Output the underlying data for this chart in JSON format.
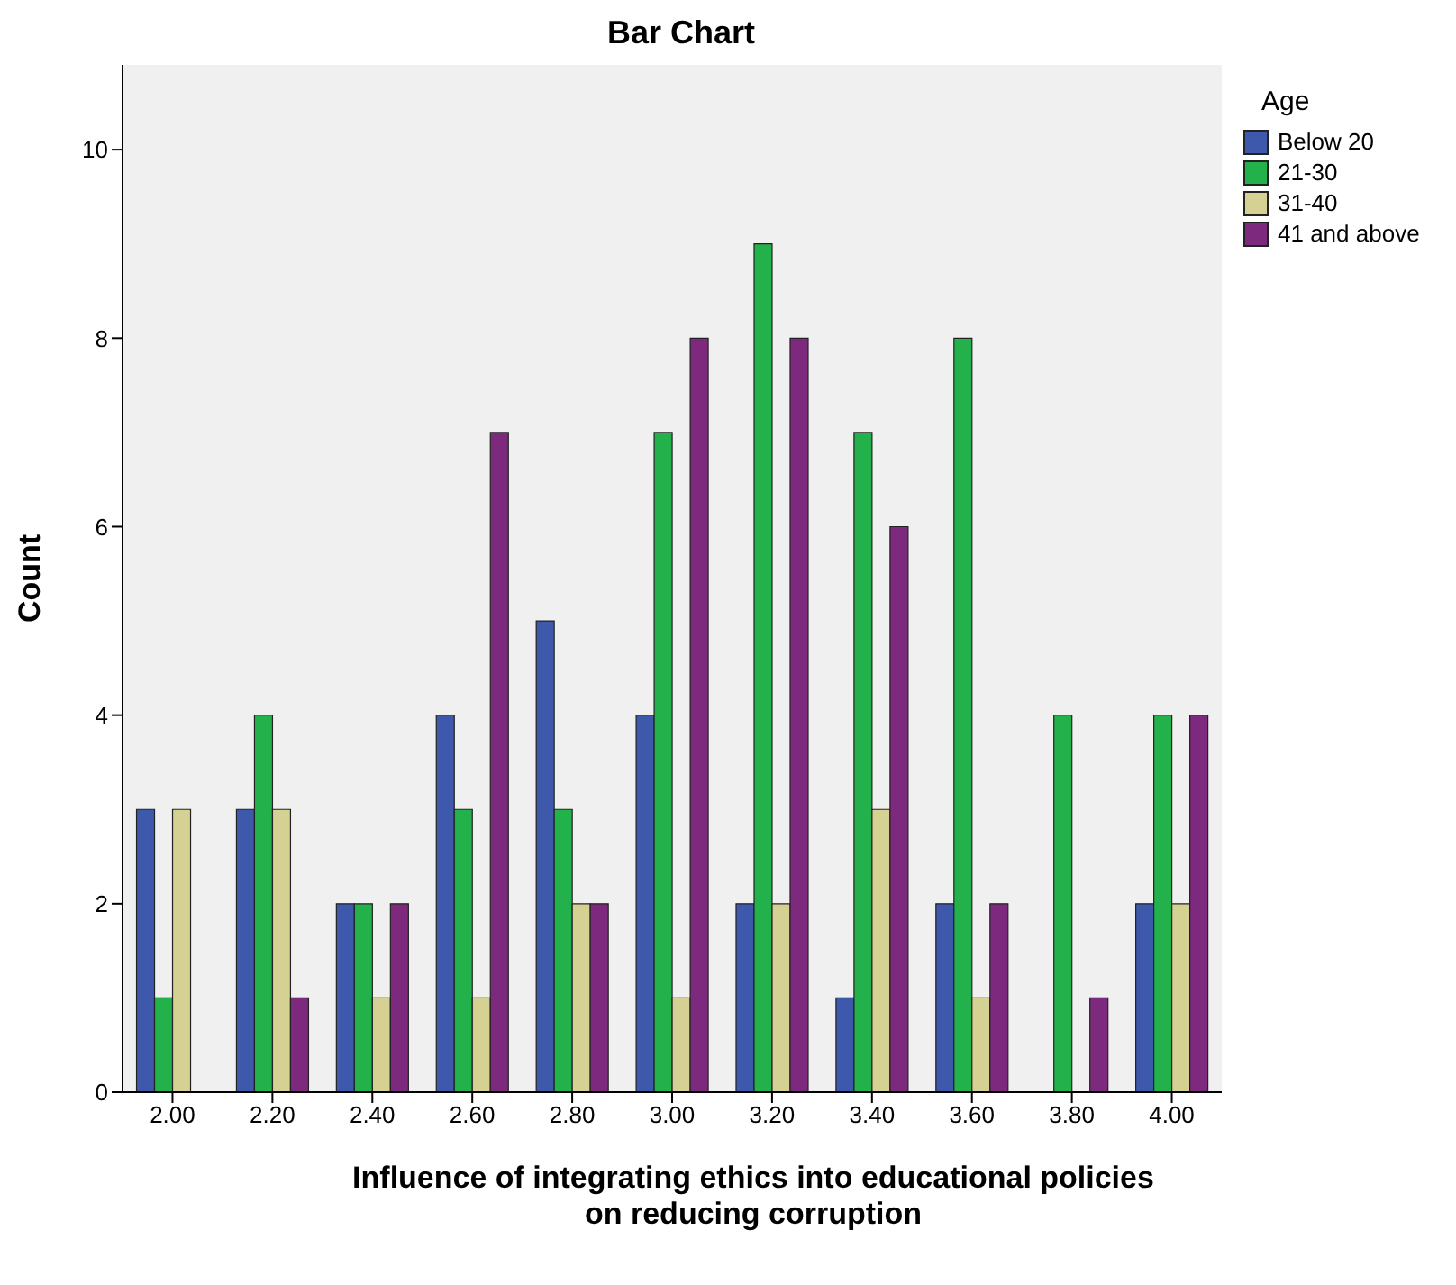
{
  "chart_data": {
    "type": "bar",
    "title": "Bar Chart",
    "xlabel": "Influence of integrating ethics into educational policies on reducing corruption",
    "ylabel": "Count",
    "legend_title": "Age",
    "legend": "right",
    "categories": [
      "2.00",
      "2.20",
      "2.40",
      "2.60",
      "2.80",
      "3.00",
      "3.20",
      "3.40",
      "3.60",
      "3.80",
      "4.00"
    ],
    "series": [
      {
        "name": "Below 20",
        "color": "#3e58ac",
        "values": [
          3,
          3,
          2,
          4,
          5,
          4,
          2,
          1,
          2,
          0,
          2
        ]
      },
      {
        "name": "21-30",
        "color": "#23b14b",
        "values": [
          1,
          4,
          2,
          3,
          3,
          7,
          9,
          7,
          8,
          4,
          4
        ]
      },
      {
        "name": "31-40",
        "color": "#d5d193",
        "values": [
          3,
          3,
          1,
          1,
          2,
          1,
          2,
          3,
          1,
          0,
          2
        ]
      },
      {
        "name": "41 and above",
        "color": "#7d2a7e",
        "values": [
          0,
          1,
          2,
          7,
          2,
          8,
          8,
          6,
          2,
          1,
          4
        ]
      }
    ],
    "ylim": [
      0,
      10.9
    ],
    "yticks": [
      0,
      2,
      4,
      6,
      8,
      10
    ],
    "grid": false
  }
}
